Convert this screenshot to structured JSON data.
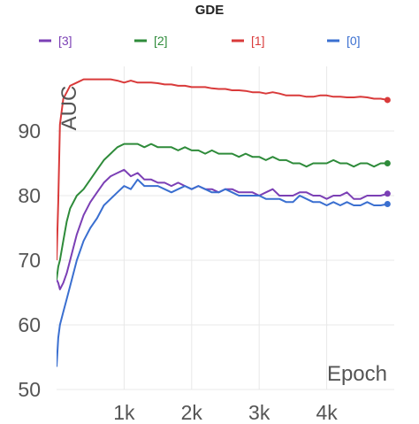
{
  "chart_data": {
    "type": "line",
    "title": "GDE",
    "xlabel": "Epoch",
    "ylabel": "AUC",
    "xlim": [
      0,
      5000
    ],
    "ylim": [
      50,
      100
    ],
    "x_ticks": [
      1000,
      2000,
      3000,
      4000
    ],
    "x_tick_labels": [
      "1k",
      "2k",
      "3k",
      "4k"
    ],
    "y_ticks": [
      50,
      60,
      70,
      80,
      90
    ],
    "y_tick_labels": [
      "50",
      "60",
      "70",
      "80",
      "90"
    ],
    "legend_position": "top",
    "grid": true,
    "x": [
      0,
      25,
      50,
      100,
      150,
      200,
      300,
      400,
      500,
      600,
      700,
      800,
      900,
      1000,
      1100,
      1200,
      1300,
      1400,
      1500,
      1600,
      1700,
      1800,
      1900,
      2000,
      2100,
      2200,
      2300,
      2400,
      2500,
      2600,
      2700,
      2800,
      2900,
      3000,
      3100,
      3200,
      3300,
      3400,
      3500,
      3600,
      3700,
      3800,
      3900,
      4000,
      4100,
      4200,
      4300,
      4400,
      4500,
      4600,
      4700,
      4800,
      4900
    ],
    "series": [
      {
        "name": "[3]",
        "color": "#7b3fb5",
        "values": [
          67,
          66.5,
          65.5,
          66.5,
          68,
          70,
          74,
          77,
          79,
          80.5,
          82,
          83,
          83.5,
          84,
          83,
          83.5,
          82.5,
          82.5,
          82,
          82,
          81.5,
          82,
          81.5,
          81,
          81.5,
          81,
          81,
          80.5,
          81,
          81,
          80.5,
          80.5,
          80.5,
          80,
          80.5,
          81,
          80,
          80,
          80,
          80.5,
          80.5,
          80,
          80,
          79.5,
          80,
          80,
          80.5,
          79.5,
          79.5,
          80,
          80,
          80,
          80.3
        ]
      },
      {
        "name": "[2]",
        "color": "#2e8b3a",
        "values": [
          67,
          69,
          70,
          73,
          76,
          78,
          80,
          81,
          82.5,
          84,
          85.5,
          86.5,
          87.5,
          88,
          88,
          88,
          87.5,
          88,
          87.5,
          87.5,
          87.5,
          87,
          87.5,
          87,
          87,
          86.5,
          87,
          86.5,
          86.5,
          86.5,
          86,
          86.5,
          86,
          86,
          85.5,
          86,
          85.5,
          85.5,
          85,
          85,
          84.5,
          85,
          85,
          85,
          85.5,
          85,
          85,
          84.5,
          85,
          85,
          84.5,
          85,
          85
        ]
      },
      {
        "name": "[1]",
        "color": "#d93a3a",
        "values": [
          70,
          79,
          91,
          95,
          96,
          97,
          97.5,
          98,
          98,
          98,
          98,
          98,
          97.8,
          97.5,
          97.8,
          97.5,
          97.5,
          97.5,
          97.4,
          97.2,
          97.2,
          97,
          97,
          96.8,
          96.8,
          96.8,
          96.6,
          96.5,
          96.5,
          96.3,
          96.3,
          96.2,
          96,
          96,
          95.8,
          96,
          95.8,
          95.5,
          95.5,
          95.5,
          95.3,
          95.3,
          95.5,
          95.5,
          95.3,
          95.3,
          95.2,
          95.2,
          95.3,
          95.2,
          95,
          95,
          94.8
        ]
      },
      {
        "name": "[0]",
        "color": "#3a6fd0",
        "values": [
          53.5,
          58,
          60,
          62,
          64,
          66,
          70,
          73,
          75,
          76.5,
          78.5,
          79.5,
          80.5,
          81.5,
          81,
          82.5,
          81.5,
          81.5,
          81.5,
          81,
          80.5,
          81,
          81.5,
          81,
          81.5,
          81,
          80.5,
          80.5,
          81,
          80.5,
          80,
          80,
          80,
          80,
          79.5,
          79.5,
          79.5,
          79,
          79,
          80,
          79.5,
          79,
          79,
          78.5,
          79,
          78.5,
          79,
          78.5,
          78.5,
          79,
          78.5,
          78.5,
          78.7
        ]
      }
    ]
  }
}
